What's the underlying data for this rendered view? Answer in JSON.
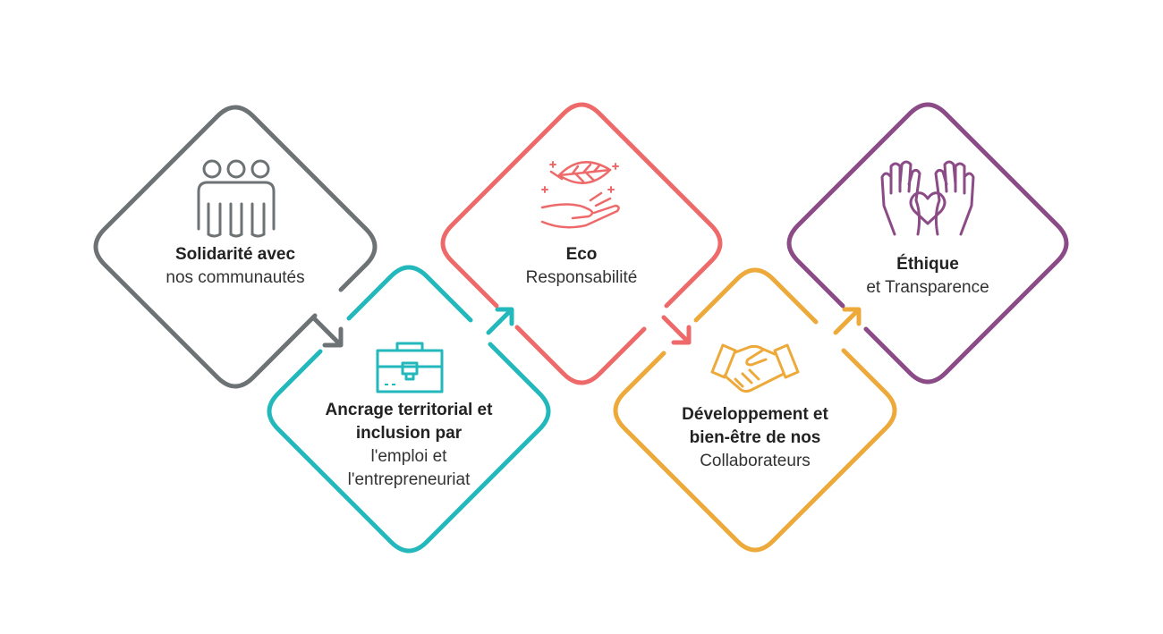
{
  "items": [
    {
      "id": "solidarite",
      "title": "Solidarité avec",
      "subtitle": "nos communautés",
      "color": "#6d7275",
      "icon": "people-icon"
    },
    {
      "id": "ancrage",
      "title": "Ancrage territorial et inclusion par",
      "subtitle": "l'emploi et l'entrepreneuriat",
      "color": "#22b8bc",
      "icon": "briefcase-icon"
    },
    {
      "id": "eco",
      "title": "Eco",
      "subtitle": "Responsabilité",
      "color": "#ee6a6a",
      "icon": "leaf-hand-icon"
    },
    {
      "id": "developpement",
      "title": "Développement et bien-être de nos",
      "subtitle": "Collaborateurs",
      "color": "#eda93a",
      "icon": "handshake-icon"
    },
    {
      "id": "ethique",
      "title": "Éthique",
      "subtitle": "et Transparence",
      "color": "#8b4b86",
      "icon": "hands-heart-icon"
    }
  ]
}
